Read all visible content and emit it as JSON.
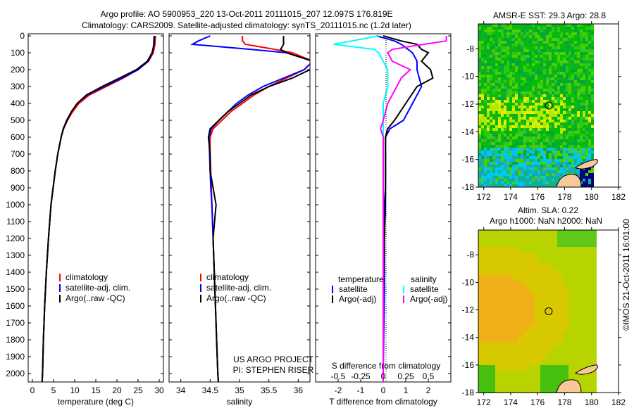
{
  "title_line1": "Argo profile: AO 5900953_220 13-Oct-2011 20111015_207 12.097S 176.819E",
  "title_line2": "Climatology: CARS2009. Satellite-adjusted climatology: synTS_20111015.nc (1.2d later)",
  "credit": "©IMOS 21-Oct-2011 16:01:00",
  "colors": {
    "climatology": "#ff0000",
    "satellite": "#0000ff",
    "argo": "#000000",
    "sal_satellite": "#00ffff",
    "sal_argo": "#ff00ff"
  },
  "chart_data": [
    {
      "type": "line",
      "id": "temperature",
      "xlabel": "temperature (deg C)",
      "xlim": [
        -1,
        31
      ],
      "xticks": [
        0,
        5,
        10,
        15,
        20,
        25,
        30
      ],
      "ylim": [
        0,
        2050
      ],
      "yticks": [
        0,
        100,
        200,
        300,
        400,
        500,
        600,
        700,
        800,
        900,
        1000,
        1100,
        1200,
        1300,
        1400,
        1500,
        1600,
        1700,
        1800,
        1900,
        2000
      ],
      "legend": [
        "climatology",
        "satellite-adj. clim.",
        "Argo(..raw -QC)"
      ],
      "depth": [
        0,
        50,
        100,
        150,
        200,
        250,
        300,
        350,
        400,
        450,
        500,
        550,
        600,
        700,
        800,
        900,
        1000,
        1200,
        1400,
        1600,
        1800,
        2000,
        2050
      ],
      "series": [
        {
          "name": "climatology",
          "color": "#ff0000",
          "values": [
            29.1,
            29,
            28.6,
            27.5,
            25,
            21.5,
            17.5,
            13.5,
            11,
            9.5,
            8.3,
            7.4,
            6.8,
            6,
            5.4,
            4.9,
            4.4,
            3.8,
            3.3,
            2.9,
            2.6,
            2.4,
            2.3
          ]
        },
        {
          "name": "satellite-adj. clim.",
          "color": "#0000ff",
          "values": [
            28.8,
            28.7,
            28.4,
            27.4,
            25,
            21.2,
            17,
            13,
            10.6,
            9.2,
            8.1,
            7.3,
            6.8,
            6,
            5.4,
            4.9,
            4.4,
            3.8,
            3.3,
            2.9,
            2.6,
            2.4,
            2.3
          ]
        },
        {
          "name": "Argo(..raw -QC)",
          "color": "#000000",
          "values": [
            28.9,
            28.8,
            28.3,
            27.2,
            24.6,
            20.6,
            16.5,
            12.8,
            10.6,
            9.2,
            8.2,
            7.3,
            6.8,
            6,
            5.4,
            4.9,
            4.4,
            3.8,
            3.3,
            2.9,
            2.6,
            2.4,
            2.3
          ]
        }
      ]
    },
    {
      "type": "line",
      "id": "salinity",
      "xlabel": "salinity",
      "xlim": [
        33.8,
        36.2
      ],
      "xticks": [
        34,
        34.5,
        35,
        35.5,
        36
      ],
      "ylim": [
        0,
        2050
      ],
      "legend": [
        "climatology",
        "satellite-adj. clim.",
        "Argo(..raw -QC)"
      ],
      "annotation": [
        "US ARGO PROJECT",
        "PI: STEPHEN RISER"
      ],
      "depth": [
        0,
        30,
        50,
        80,
        100,
        150,
        200,
        250,
        300,
        350,
        400,
        450,
        500,
        550,
        600,
        700,
        800,
        900,
        1000,
        1200,
        1500,
        1800,
        2000,
        2050
      ],
      "series": [
        {
          "name": "climatology",
          "color": "#ff0000",
          "values": [
            35.05,
            35.05,
            35.1,
            35.6,
            35.9,
            36.25,
            36.1,
            35.8,
            35.5,
            35.25,
            35.05,
            34.85,
            34.7,
            34.55,
            34.5,
            34.5,
            34.51,
            34.52,
            34.53,
            34.55,
            34.58,
            34.61,
            34.63,
            34.64
          ]
        },
        {
          "name": "satellite-adj. clim.",
          "color": "#0000ff",
          "values": [
            34.5,
            34.3,
            34.2,
            35.2,
            35.8,
            36.25,
            36.1,
            35.75,
            35.4,
            35.15,
            34.95,
            34.8,
            34.65,
            34.52,
            34.48,
            34.49,
            34.5,
            34.51,
            34.53,
            34.55,
            34.58,
            34.61,
            34.63,
            34.64
          ]
        },
        {
          "name": "Argo(..raw -QC)",
          "color": "#000000",
          "values": [
            35.75,
            35.75,
            35.75,
            35.7,
            35.8,
            36.25,
            36.2,
            35.9,
            35.5,
            35.2,
            35.0,
            34.8,
            34.65,
            34.5,
            34.47,
            34.5,
            34.5,
            34.55,
            34.6,
            34.55,
            34.58,
            34.61,
            34.63,
            34.64
          ]
        }
      ]
    },
    {
      "type": "line",
      "id": "differences",
      "xlabel": "T difference from climatology",
      "xlabel_top": "S difference from climatology",
      "xlim": [
        -3,
        3
      ],
      "xticks": [
        -2,
        -1,
        0,
        1,
        2
      ],
      "s_xlim": [
        -0.75,
        0.75
      ],
      "s_xticks": [
        -0.5,
        -0.25,
        0,
        0.25,
        0.5
      ],
      "ylim": [
        0,
        2050
      ],
      "legend_temperature": {
        "title": "temperature",
        "items": [
          "satellite",
          "Argo(-adj)"
        ]
      },
      "legend_salinity": {
        "title": "salinity",
        "items": [
          "satellite",
          "Argo(-adj)"
        ]
      },
      "depth": [
        0,
        30,
        50,
        80,
        100,
        150,
        200,
        250,
        300,
        400,
        500,
        550,
        600,
        700,
        800,
        900,
        1000,
        1200,
        1500,
        2000,
        2050
      ],
      "series": [
        {
          "name": "temperature satellite",
          "axis": "T",
          "color": "#0000ff",
          "values": [
            -0.3,
            0.5,
            0.8,
            1.1,
            1.3,
            1.5,
            1.5,
            1.6,
            1.7,
            1.3,
            0.9,
            0.3,
            0.1,
            0.1,
            0.1,
            0.1,
            0.05,
            0.05,
            0.05,
            0,
            0
          ]
        },
        {
          "name": "temperature Argo(-adj)",
          "axis": "T",
          "color": "#000000",
          "values": [
            0,
            0.8,
            1.5,
            1.7,
            2.0,
            1.7,
            2.1,
            2.2,
            1.5,
            1.0,
            0.5,
            0.2,
            0.1,
            0.1,
            0.1,
            0.1,
            0.1,
            0.05,
            0,
            0,
            0
          ]
        },
        {
          "name": "salinity satellite",
          "axis": "S",
          "color": "#00ffff",
          "values": [
            -0.05,
            -0.35,
            -0.55,
            -0.1,
            -0.05,
            0,
            0.05,
            0.05,
            0.05,
            0,
            0,
            0,
            0,
            0,
            0,
            0,
            0,
            0,
            0,
            0,
            0
          ]
        },
        {
          "name": "salinity Argo(-adj)",
          "axis": "S",
          "color": "#ff00ff",
          "values": [
            0.7,
            0.7,
            0.45,
            0.1,
            0.05,
            0.1,
            0.3,
            0.2,
            0.15,
            0.05,
            0,
            -0.03,
            0,
            0,
            0,
            0,
            0,
            0,
            0,
            0,
            0
          ]
        }
      ]
    },
    {
      "type": "heatmap",
      "id": "sst-map",
      "title": "AMSR-E SST: 29.3 Argo: 28.8",
      "xlim": [
        171.6,
        182
      ],
      "xticks": [
        172,
        174,
        176,
        178,
        180,
        182
      ],
      "ylim": [
        -18,
        -6.2
      ],
      "yticks": [
        -8,
        -10,
        -12,
        -14,
        -16,
        -18
      ],
      "float_position": [
        176.819,
        -12.097
      ]
    },
    {
      "type": "heatmap",
      "id": "sla-map",
      "title": "Altim. SLA: 0.22",
      "subtitle": "Argo h1000: NaN h2000: NaN",
      "xlim": [
        171.6,
        182
      ],
      "xticks": [
        172,
        174,
        176,
        178,
        180,
        182
      ],
      "ylim": [
        -18,
        -6.2
      ],
      "yticks": [
        -8,
        -10,
        -12,
        -14,
        -16,
        -18
      ],
      "float_position": [
        176.819,
        -12.097
      ]
    }
  ]
}
